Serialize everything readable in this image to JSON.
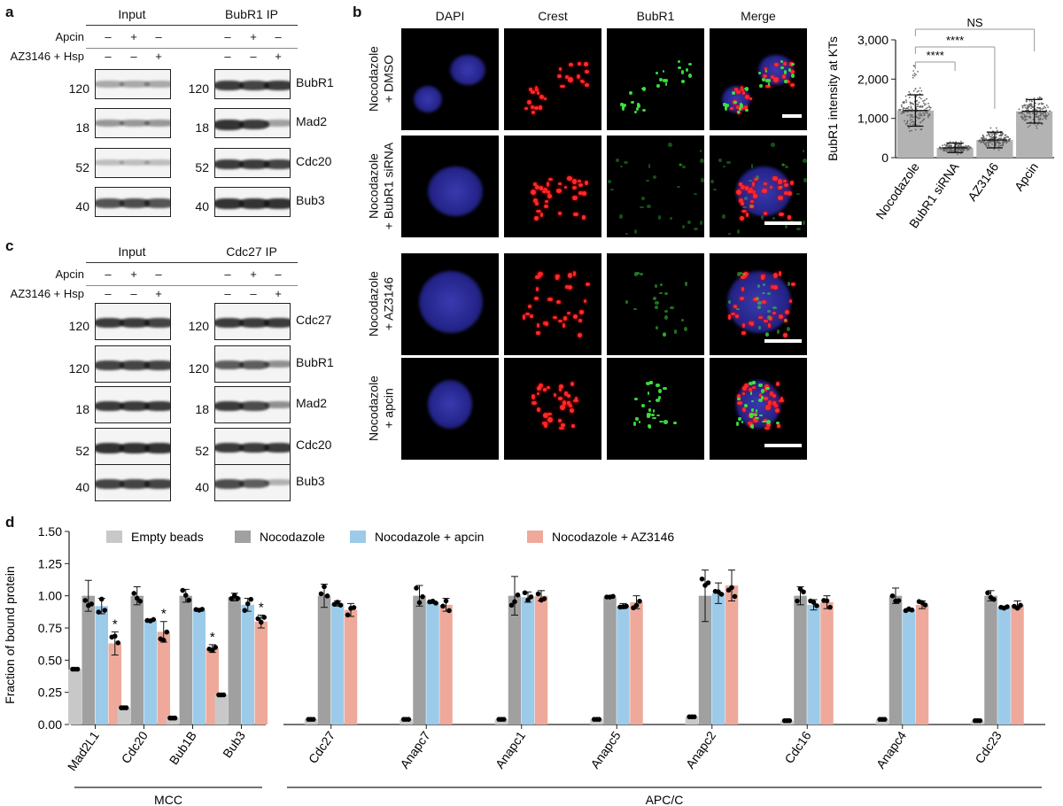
{
  "panels": {
    "a": "a",
    "b": "b",
    "c": "c",
    "d": "d"
  },
  "panel_a": {
    "input_header": "Input",
    "ip_header": "BubR1 IP",
    "row_labels": [
      "Apcin",
      "AZ3146 + Hsp"
    ],
    "apcin_signs": [
      "–",
      "+",
      "–"
    ],
    "az_signs": [
      "–",
      "–",
      "+"
    ],
    "blots": [
      {
        "mw": "120",
        "name": "BubR1"
      },
      {
        "mw": "18",
        "name": "Mad2"
      },
      {
        "mw": "52",
        "name": "Cdc20"
      },
      {
        "mw": "40",
        "name": "Bub3"
      }
    ]
  },
  "panel_c": {
    "input_header": "Input",
    "ip_header": "Cdc27 IP",
    "row_labels": [
      "Apcin",
      "AZ3146 + Hsp"
    ],
    "apcin_signs": [
      "–",
      "+",
      "–"
    ],
    "az_signs": [
      "–",
      "–",
      "+"
    ],
    "blots": [
      {
        "mw": "120",
        "name": "Cdc27"
      },
      {
        "mw": "120",
        "name": "BubR1"
      },
      {
        "mw": "18",
        "name": "Mad2"
      },
      {
        "mw": "52",
        "name": "Cdc20"
      },
      {
        "mw": "40",
        "name": "Bub3"
      }
    ]
  },
  "panel_b": {
    "columns": [
      "DAPI",
      "Crest",
      "BubR1",
      "Merge"
    ],
    "rows": [
      {
        "line1": "Nocodazole",
        "line2": "+ DMSO"
      },
      {
        "line1": "Nocodazole",
        "line2": "+ BubR1 siRNA"
      },
      {
        "line1": "Nocodazole",
        "line2": "+ AZ3146"
      },
      {
        "line1": "Nocodazole",
        "line2": "+ apcin"
      }
    ]
  },
  "chart_data": [
    {
      "type": "bar",
      "panel": "b",
      "ylabel": "BubR1 intensity at KTs",
      "categories": [
        "Nocodazole",
        "BubR1 siRNA",
        "AZ3146",
        "Apcin"
      ],
      "values": [
        1200,
        250,
        450,
        1180
      ],
      "sd": [
        400,
        120,
        200,
        300
      ],
      "ylim": [
        0,
        3000
      ],
      "yticks": [
        "0",
        "1,000",
        "2,000",
        "3,000"
      ],
      "colors": {
        "bar": "#b3b3b3",
        "dots": "#666666"
      },
      "significance": [
        {
          "from": "Nocodazole",
          "to": "BubR1 siRNA",
          "label": "****"
        },
        {
          "from": "Nocodazole",
          "to": "AZ3146",
          "label": "****"
        },
        {
          "from": "Nocodazole",
          "to": "Apcin",
          "label": "NS"
        }
      ]
    },
    {
      "type": "bar",
      "panel": "d",
      "ylabel": "Fraction of bound protein",
      "ylim": [
        0,
        1.5
      ],
      "yticks": [
        "0.00",
        "0.25",
        "0.50",
        "0.75",
        "1.00",
        "1.25",
        "1.50"
      ],
      "categories": [
        "Mad2L1",
        "Cdc20",
        "Bub1B",
        "Bub3",
        "Cdc27",
        "Anapc7",
        "Anapc1",
        "Anapc5",
        "Anapc2",
        "Cdc16",
        "Anapc4",
        "Cdc23"
      ],
      "groups": [
        {
          "label": "MCC",
          "categories": [
            "Mad2L1",
            "Cdc20",
            "Bub1B",
            "Bub3"
          ]
        },
        {
          "label": "APC/C",
          "categories": [
            "Cdc27",
            "Anapc7",
            "Anapc1",
            "Anapc5",
            "Anapc2",
            "Cdc16",
            "Anapc4",
            "Cdc23"
          ]
        }
      ],
      "series": [
        {
          "name": "Empty beads",
          "color": "#c8c8c8",
          "values": [
            0.43,
            0.13,
            0.05,
            0.23,
            0.04,
            0.04,
            0.04,
            0.04,
            0.06,
            0.03,
            0.04,
            0.03
          ],
          "err": [
            0.01,
            0.01,
            0.01,
            0.01,
            0.01,
            0.01,
            0.01,
            0.01,
            0.01,
            0.01,
            0.01,
            0.01
          ]
        },
        {
          "name": "Nocodazole",
          "color": "#a0a0a0",
          "values": [
            1.0,
            1.0,
            1.0,
            0.99,
            1.0,
            1.0,
            1.0,
            0.99,
            1.0,
            1.0,
            1.0,
            1.0
          ],
          "err": [
            0.12,
            0.07,
            0.05,
            0.03,
            0.09,
            0.08,
            0.15,
            0.01,
            0.2,
            0.07,
            0.06,
            0.04
          ]
        },
        {
          "name": "Nocodazole + apcin",
          "color": "#9ccbea",
          "values": [
            0.92,
            0.81,
            0.89,
            0.93,
            0.94,
            0.95,
            0.99,
            0.92,
            1.02,
            0.93,
            0.89,
            0.91
          ],
          "err": [
            0.06,
            0.01,
            0.01,
            0.05,
            0.02,
            0.01,
            0.04,
            0.02,
            0.08,
            0.04,
            0.01,
            0.01
          ]
        },
        {
          "name": "Nocodazole + AZ3146",
          "color": "#eea99a",
          "values": [
            0.63,
            0.72,
            0.59,
            0.8,
            0.89,
            0.93,
            1.0,
            0.95,
            1.08,
            0.95,
            0.93,
            0.93
          ],
          "err": [
            0.09,
            0.08,
            0.03,
            0.05,
            0.05,
            0.05,
            0.04,
            0.05,
            0.12,
            0.05,
            0.03,
            0.03
          ]
        }
      ],
      "significance_marker": "*",
      "significant_categories": [
        "Mad2L1",
        "Cdc20",
        "Bub1B",
        "Bub3"
      ]
    }
  ]
}
